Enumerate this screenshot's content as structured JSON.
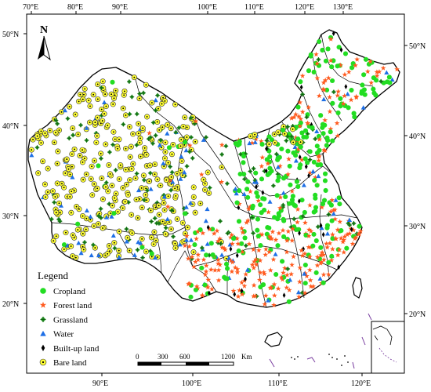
{
  "map": {
    "top_axis_labels": [
      "70°E",
      "80°E",
      "90°E",
      "100°E",
      "110°E",
      "120°E",
      "130°E"
    ],
    "bottom_axis_labels": [
      "90°E",
      "100°E",
      "110°E",
      "120°E"
    ],
    "left_axis_labels": [
      "50°N",
      "40°N",
      "30°N",
      "20°N"
    ],
    "right_axis_labels": [
      "50°N",
      "40°N",
      "30°N",
      "20°N"
    ],
    "north_label": "N",
    "scale_bar": {
      "ticks": [
        "0",
        "300",
        "600",
        "1200"
      ],
      "unit": "Km"
    }
  },
  "legend": {
    "title": "Legend",
    "items": [
      {
        "label": "Cropland",
        "marker": "circle",
        "color": "#22dd22"
      },
      {
        "label": "Forest land",
        "marker": "star",
        "color": "#ff5a1e"
      },
      {
        "label": "Grassland",
        "marker": "diamond-cross",
        "color": "#2e9c2e"
      },
      {
        "label": "Water",
        "marker": "triangle",
        "color": "#1e6fe6"
      },
      {
        "label": "Built-up land",
        "marker": "diamond",
        "color": "#000000"
      },
      {
        "label": "Bare land",
        "marker": "ring-dot",
        "color": "#ffff33"
      }
    ]
  },
  "colors": {
    "province_fill": "#ffffff",
    "border": "#000000"
  }
}
